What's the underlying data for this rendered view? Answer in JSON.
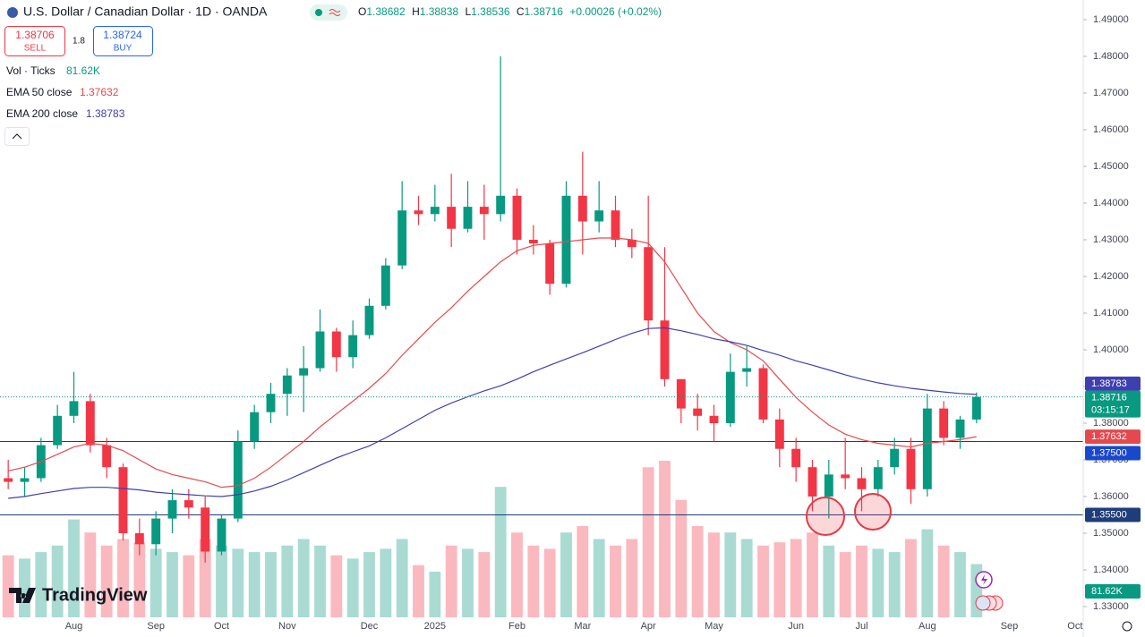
{
  "header": {
    "title": "U.S. Dollar / Canadian Dollar · 1D · OANDA",
    "ohlc": [
      {
        "label": "O",
        "value": "1.38682"
      },
      {
        "label": "H",
        "value": "1.38838"
      },
      {
        "label": "L",
        "value": "1.38536"
      },
      {
        "label": "C",
        "value": "1.38716"
      }
    ],
    "change": "+0.00026 (+0.02%)"
  },
  "trade": {
    "sell_price": "1.38706",
    "sell_label": "SELL",
    "spread": "1.8",
    "buy_price": "1.38724",
    "buy_label": "BUY"
  },
  "logo": "TradingView",
  "chart_data": {
    "type": "candlestick",
    "categories": [
      null,
      null,
      null,
      null,
      "Aug",
      null,
      null,
      null,
      null,
      "Sep",
      null,
      null,
      null,
      "Oct",
      null,
      null,
      null,
      "Nov",
      null,
      null,
      null,
      null,
      "Dec",
      null,
      null,
      null,
      "2025",
      null,
      null,
      null,
      null,
      "Feb",
      null,
      null,
      null,
      "Mar",
      null,
      null,
      null,
      "Apr",
      null,
      null,
      null,
      "May",
      null,
      null,
      null,
      null,
      "Jun",
      null,
      null,
      null,
      "Jul",
      null,
      null,
      null,
      "Aug",
      null,
      null,
      null,
      null,
      "Sep",
      null,
      null,
      null,
      "Oct"
    ],
    "open": [
      1.365,
      1.364,
      1.365,
      1.374,
      1.382,
      1.386,
      1.374,
      1.368,
      1.35,
      1.347,
      1.354,
      1.359,
      1.357,
      1.345,
      1.354,
      1.375,
      1.383,
      1.388,
      1.393,
      1.395,
      1.405,
      1.398,
      1.404,
      1.412,
      1.423,
      1.438,
      1.437,
      1.439,
      1.433,
      1.439,
      1.437,
      1.442,
      1.43,
      1.429,
      1.418,
      1.442,
      1.435,
      1.438,
      1.43,
      1.428,
      1.408,
      1.392,
      1.384,
      1.382,
      1.38,
      1.394,
      1.395,
      1.381,
      1.373,
      1.368,
      1.36,
      1.366,
      1.365,
      1.362,
      1.368,
      1.373,
      1.362,
      1.384,
      1.376,
      1.381,
      null,
      null,
      null,
      null,
      null,
      null
    ],
    "high": [
      1.37,
      1.368,
      1.376,
      1.385,
      1.394,
      1.388,
      1.376,
      1.369,
      1.354,
      1.356,
      1.362,
      1.362,
      1.36,
      1.355,
      1.378,
      1.385,
      1.391,
      1.395,
      1.401,
      1.411,
      1.406,
      1.408,
      1.414,
      1.425,
      1.446,
      1.442,
      1.445,
      1.448,
      1.446,
      1.445,
      1.48,
      1.444,
      1.434,
      1.43,
      1.446,
      1.454,
      1.446,
      1.442,
      1.433,
      1.442,
      1.428,
      1.392,
      1.388,
      1.385,
      1.399,
      1.401,
      1.396,
      1.384,
      1.376,
      1.37,
      1.37,
      1.376,
      1.368,
      1.37,
      1.376,
      1.376,
      1.388,
      1.386,
      1.382,
      1.38838,
      null,
      null,
      null,
      null,
      null,
      null
    ],
    "low": [
      1.362,
      1.36,
      1.364,
      1.373,
      1.38,
      1.372,
      1.365,
      1.348,
      1.344,
      1.344,
      1.35,
      1.354,
      1.342,
      1.344,
      1.353,
      1.373,
      1.38,
      1.382,
      1.383,
      1.394,
      1.394,
      1.395,
      1.403,
      1.411,
      1.422,
      1.434,
      1.435,
      1.428,
      1.432,
      1.43,
      1.435,
      1.426,
      1.426,
      1.415,
      1.417,
      1.426,
      1.432,
      1.428,
      1.425,
      1.404,
      1.39,
      1.38,
      1.378,
      1.375,
      1.379,
      1.39,
      1.38,
      1.368,
      1.364,
      1.356,
      1.354,
      1.362,
      1.356,
      1.36,
      1.366,
      1.358,
      1.36,
      1.374,
      1.373,
      1.38,
      null,
      null,
      null,
      null,
      null,
      null
    ],
    "close": [
      1.364,
      1.365,
      1.374,
      1.382,
      1.386,
      1.374,
      1.368,
      1.35,
      1.347,
      1.354,
      1.359,
      1.357,
      1.345,
      1.354,
      1.375,
      1.383,
      1.388,
      1.393,
      1.395,
      1.405,
      1.398,
      1.404,
      1.412,
      1.423,
      1.438,
      1.437,
      1.439,
      1.433,
      1.439,
      1.437,
      1.442,
      1.43,
      1.429,
      1.418,
      1.442,
      1.435,
      1.438,
      1.43,
      1.428,
      1.408,
      1.392,
      1.384,
      1.382,
      1.38,
      1.394,
      1.395,
      1.381,
      1.373,
      1.368,
      1.36,
      1.366,
      1.365,
      1.362,
      1.368,
      1.373,
      1.362,
      1.384,
      1.376,
      1.381,
      1.38716,
      null,
      null,
      null,
      null,
      null,
      null
    ],
    "up_color": "#089981",
    "down_color": "#f23645",
    "volume": {
      "name": "Vol · Ticks",
      "last_label": "81.62K",
      "values": [
        95,
        90,
        100,
        110,
        150,
        130,
        110,
        120,
        115,
        105,
        100,
        95,
        120,
        110,
        105,
        100,
        100,
        110,
        120,
        110,
        95,
        90,
        100,
        105,
        120,
        80,
        70,
        110,
        105,
        100,
        200,
        130,
        110,
        105,
        130,
        140,
        120,
        110,
        120,
        230,
        240,
        180,
        140,
        130,
        130,
        120,
        110,
        115,
        120,
        130,
        110,
        100,
        110,
        105,
        100,
        120,
        135,
        110,
        100,
        81.62,
        null,
        null,
        null,
        null,
        null,
        null
      ]
    },
    "lines": [
      {
        "name": "EMA 50 close",
        "color": "#e5494d",
        "values": [
          1.367,
          1.368,
          1.3695,
          1.3715,
          1.3735,
          1.3745,
          1.374,
          1.3725,
          1.37,
          1.3675,
          1.366,
          1.365,
          1.364,
          1.3625,
          1.363,
          1.365,
          1.368,
          1.3715,
          1.375,
          1.379,
          1.3825,
          1.386,
          1.3895,
          1.3935,
          1.3985,
          1.403,
          1.4075,
          1.4115,
          1.416,
          1.42,
          1.424,
          1.427,
          1.4285,
          1.429,
          1.4295,
          1.43,
          1.4305,
          1.4305,
          1.43,
          1.429,
          1.424,
          1.417,
          1.41,
          1.405,
          1.402,
          1.4,
          1.397,
          1.392,
          1.387,
          1.383,
          1.3795,
          1.377,
          1.3755,
          1.3745,
          1.374,
          1.3735,
          1.3745,
          1.375,
          1.3755,
          1.37632,
          null,
          null,
          null,
          null,
          null,
          null
        ]
      },
      {
        "name": "EMA 200 close",
        "color": "#3f3fb0",
        "values": [
          1.3595,
          1.36,
          1.3608,
          1.3615,
          1.3622,
          1.3625,
          1.3625,
          1.3622,
          1.3618,
          1.3612,
          1.3608,
          1.3605,
          1.3602,
          1.36,
          1.3605,
          1.3615,
          1.3628,
          1.3645,
          1.3665,
          1.3685,
          1.3705,
          1.3722,
          1.3738,
          1.376,
          1.3785,
          1.381,
          1.3835,
          1.3855,
          1.3872,
          1.3888,
          1.3902,
          1.392,
          1.394,
          1.3958,
          1.3975,
          1.3992,
          1.401,
          1.4028,
          1.4045,
          1.4058,
          1.406,
          1.4052,
          1.4042,
          1.403,
          1.4022,
          1.4012,
          1.3998,
          1.3985,
          1.397,
          1.3958,
          1.3945,
          1.3932,
          1.392,
          1.391,
          1.3902,
          1.3895,
          1.389,
          1.3885,
          1.3881,
          1.38783,
          null,
          null,
          null,
          null,
          null,
          null
        ]
      }
    ],
    "levels": [
      {
        "value": 1.375,
        "label": "1.37500"
      },
      {
        "value": 1.355,
        "label": "1.35500"
      }
    ],
    "level_color": "#1f3d7a",
    "countdown": "03:15:17",
    "ylim": [
      1.32707,
      1.49537
    ],
    "yticks": [
      {
        "value": 1.49,
        "label": "1.49000"
      },
      {
        "value": 1.48,
        "label": "1.48000"
      },
      {
        "value": 1.47,
        "label": "1.47000"
      },
      {
        "value": 1.46,
        "label": "1.46000"
      },
      {
        "value": 1.45,
        "label": "1.45000"
      },
      {
        "value": 1.44,
        "label": "1.44000"
      },
      {
        "value": 1.43,
        "label": "1.43000"
      },
      {
        "value": 1.42,
        "label": "1.42000"
      },
      {
        "value": 1.41,
        "label": "1.41000"
      },
      {
        "value": 1.4,
        "label": "1.40000"
      },
      {
        "value": 1.39,
        "label": "1.39000"
      },
      {
        "value": 1.38,
        "label": "1.38000"
      },
      {
        "value": 1.37,
        "label": "1.37000"
      },
      {
        "value": 1.36,
        "label": "1.36000"
      },
      {
        "value": 1.35,
        "label": "1.35000"
      },
      {
        "value": 1.34,
        "label": "1.34000"
      },
      {
        "value": 1.33,
        "label": "1.33000"
      }
    ],
    "grid": false
  }
}
